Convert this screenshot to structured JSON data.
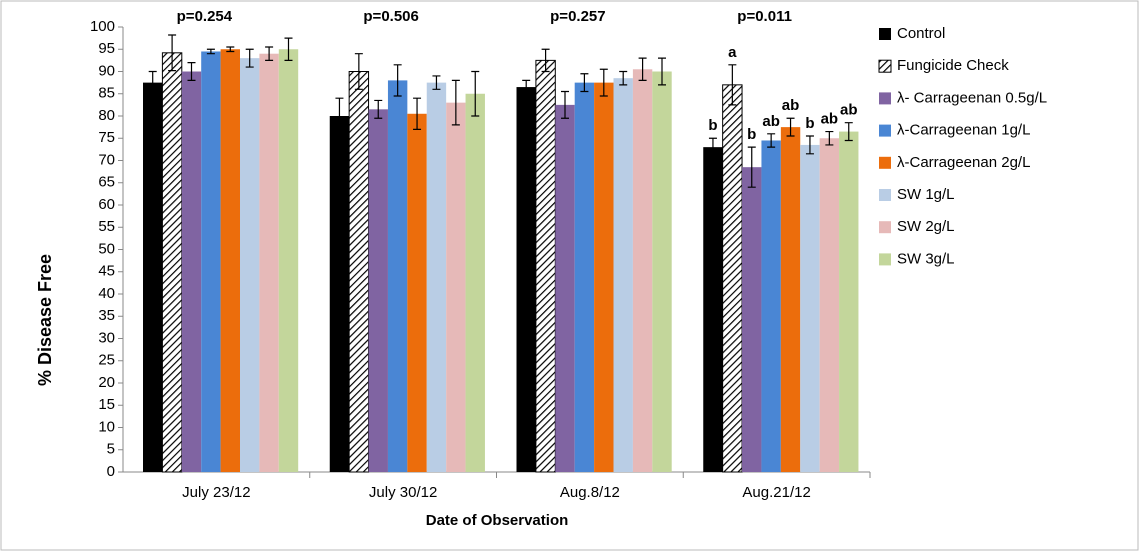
{
  "chart_data": {
    "type": "bar",
    "y_label": "% Disease Free",
    "x_label": "Date of Observation",
    "categories": [
      "July 23/12",
      "July 30/12",
      "Aug.8/12",
      "Aug.21/12"
    ],
    "annotations": [
      "p=0.254",
      "p=0.506",
      "p=0.257",
      "p=0.011"
    ],
    "ylim": [
      0,
      100
    ],
    "yticks": [
      0,
      5,
      10,
      15,
      20,
      25,
      30,
      35,
      40,
      45,
      50,
      55,
      60,
      65,
      70,
      75,
      80,
      85,
      90,
      95,
      100
    ],
    "grid": false,
    "legend": "right",
    "series": [
      {
        "name": "Control",
        "color": "#000000",
        "values": [
          87.5,
          80,
          86.5,
          73
        ],
        "errors": [
          2.5,
          4,
          1.5,
          2
        ],
        "labels": [
          null,
          null,
          null,
          "b"
        ]
      },
      {
        "name": "Fungicide Check",
        "color": "#ffffff",
        "pattern": "hatch",
        "values": [
          94.2,
          90,
          92.5,
          87
        ],
        "errors": [
          4,
          4,
          2.5,
          4.5
        ],
        "labels": [
          null,
          null,
          null,
          "a"
        ]
      },
      {
        "name": "λ- Carrageenan 0.5g/L",
        "color": "#8064a2",
        "values": [
          90,
          81.5,
          82.5,
          68.5
        ],
        "errors": [
          2,
          2,
          3,
          4.5
        ],
        "labels": [
          null,
          null,
          null,
          "b"
        ]
      },
      {
        "name": "λ-Carrageenan 1g/L",
        "color": "#4a86d4",
        "values": [
          94.5,
          88,
          87.5,
          74.5
        ],
        "errors": [
          0.5,
          3.5,
          2,
          1.5
        ],
        "labels": [
          null,
          null,
          null,
          "ab"
        ]
      },
      {
        "name": "λ-Carrageenan 2g/L",
        "color": "#ec6d0c",
        "values": [
          95,
          80.5,
          87.5,
          77.5
        ],
        "errors": [
          0.5,
          3.5,
          3,
          2
        ],
        "labels": [
          null,
          null,
          null,
          "ab"
        ]
      },
      {
        "name": "SW 1g/L",
        "color": "#b9cde5",
        "values": [
          93,
          87.5,
          88.5,
          73.5
        ],
        "errors": [
          2,
          1.5,
          1.5,
          2
        ],
        "labels": [
          null,
          null,
          null,
          "b"
        ]
      },
      {
        "name": "SW 2g/L",
        "color": "#e6b9b8",
        "values": [
          94,
          83,
          90.5,
          75
        ],
        "errors": [
          1.5,
          5,
          2.5,
          1.5
        ],
        "labels": [
          null,
          null,
          null,
          "ab"
        ]
      },
      {
        "name": "SW 3g/L",
        "color": "#c3d69b",
        "values": [
          95,
          85,
          90,
          76.5
        ],
        "errors": [
          2.5,
          5,
          3,
          2
        ],
        "labels": [
          null,
          null,
          null,
          "ab"
        ]
      }
    ]
  }
}
